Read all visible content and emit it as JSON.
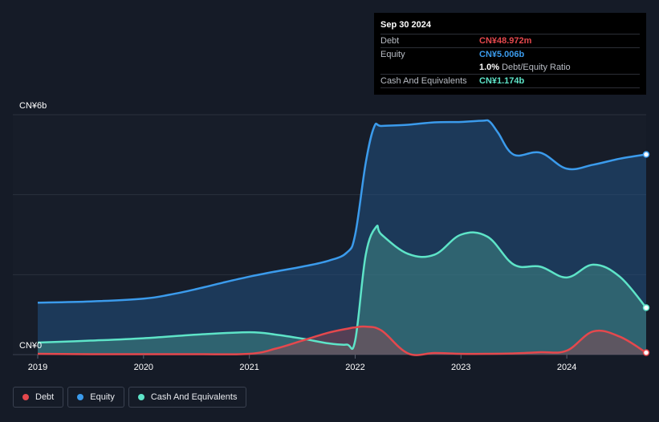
{
  "tooltip": {
    "date": "Sep 30 2024",
    "debt_label": "Debt",
    "debt_value": "CN¥48.972m",
    "equity_label": "Equity",
    "equity_value": "CN¥5.006b",
    "ratio_value": "1.0%",
    "ratio_label": "Debt/Equity Ratio",
    "cash_label": "Cash And Equivalents",
    "cash_value": "CN¥1.174b"
  },
  "colors": {
    "debt": "#e5484d",
    "equity": "#3b9bec",
    "cash": "#5ee4c8",
    "background": "#151b27"
  },
  "legend": [
    {
      "name": "Debt",
      "color": "#e5484d"
    },
    {
      "name": "Equity",
      "color": "#3b9bec"
    },
    {
      "name": "Cash And Equivalents",
      "color": "#5ee4c8"
    }
  ],
  "chart_data": {
    "type": "area",
    "title": "",
    "xlabel": "",
    "ylabel": "",
    "y_unit": "CN¥ billions",
    "ylim": [
      0,
      6
    ],
    "y_tick_labels": [
      "CN¥0",
      "CN¥6b"
    ],
    "x_tick_labels": [
      "2019",
      "2020",
      "2021",
      "2022",
      "2023",
      "2024"
    ],
    "xlim": [
      2019.0,
      2024.75
    ],
    "series": [
      {
        "name": "Equity",
        "x": [
          2019.0,
          2019.5,
          2020.0,
          2020.25,
          2020.5,
          2020.75,
          2021.0,
          2021.25,
          2021.5,
          2021.75,
          2021.92,
          2022.0,
          2022.1,
          2022.18,
          2022.25,
          2022.5,
          2022.75,
          2023.0,
          2023.2,
          2023.27,
          2023.35,
          2023.5,
          2023.75,
          2024.0,
          2024.25,
          2024.5,
          2024.75
        ],
        "values": [
          1.3,
          1.33,
          1.4,
          1.5,
          1.64,
          1.8,
          1.95,
          2.08,
          2.2,
          2.35,
          2.55,
          3.0,
          4.8,
          5.7,
          5.72,
          5.75,
          5.81,
          5.82,
          5.85,
          5.83,
          5.55,
          5.0,
          5.05,
          4.65,
          4.75,
          4.9,
          5.006
        ]
      },
      {
        "name": "Cash And Equivalents",
        "x": [
          2019.0,
          2019.5,
          2020.0,
          2020.5,
          2021.0,
          2021.25,
          2021.5,
          2021.75,
          2021.92,
          2022.0,
          2022.1,
          2022.2,
          2022.25,
          2022.5,
          2022.75,
          2023.0,
          2023.25,
          2023.5,
          2023.75,
          2024.0,
          2024.25,
          2024.5,
          2024.75
        ],
        "values": [
          0.3,
          0.35,
          0.41,
          0.5,
          0.56,
          0.5,
          0.4,
          0.28,
          0.25,
          0.35,
          2.5,
          3.2,
          3.0,
          2.52,
          2.5,
          3.0,
          2.95,
          2.25,
          2.2,
          1.93,
          2.25,
          1.95,
          1.174
        ]
      },
      {
        "name": "Debt",
        "x": [
          2019.0,
          2019.5,
          2020.0,
          2020.5,
          2021.0,
          2021.25,
          2021.5,
          2021.75,
          2021.95,
          2022.0,
          2022.1,
          2022.25,
          2022.5,
          2022.75,
          2023.0,
          2023.25,
          2023.5,
          2023.75,
          2024.0,
          2024.25,
          2024.5,
          2024.75
        ],
        "values": [
          0.02,
          0.01,
          0.01,
          0.01,
          0.02,
          0.15,
          0.35,
          0.55,
          0.66,
          0.68,
          0.7,
          0.6,
          0.03,
          0.04,
          0.02,
          0.02,
          0.03,
          0.06,
          0.1,
          0.58,
          0.45,
          0.049
        ]
      }
    ]
  }
}
